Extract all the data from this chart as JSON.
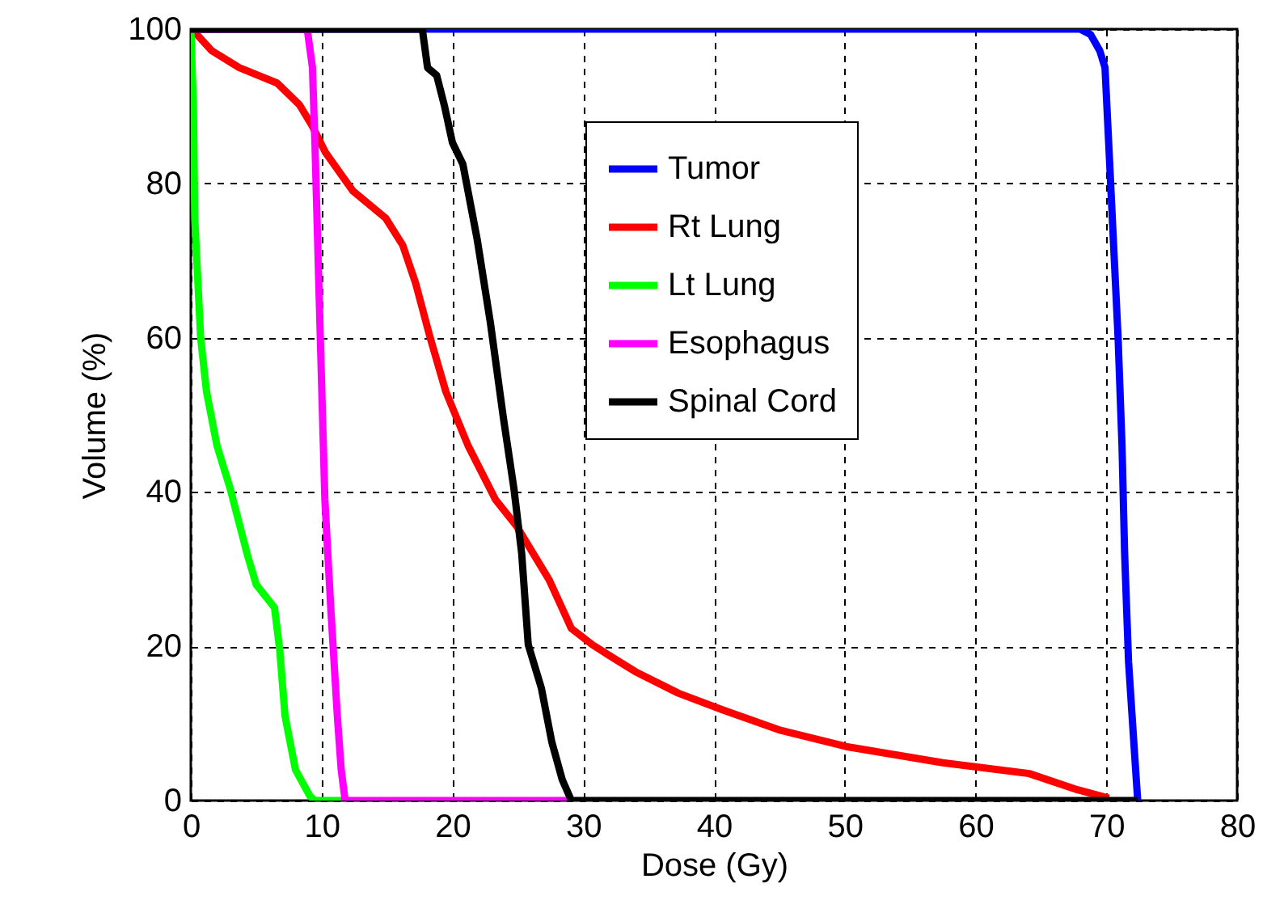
{
  "chart_data": {
    "type": "line",
    "xlabel": "Dose (Gy)",
    "ylabel": "Volume (%)",
    "xlim": [
      0,
      80
    ],
    "xticks": [
      0,
      10,
      20,
      30,
      40,
      50,
      60,
      70,
      80
    ],
    "ylim": [
      0,
      100
    ],
    "yticks": [
      0,
      20,
      40,
      60,
      80,
      100
    ],
    "grid": true,
    "legend": "top right",
    "series": [
      {
        "name": "Tumor",
        "color": "#0000ff",
        "x": [
          0,
          68.0,
          68.8,
          69.5,
          69.9,
          70.2,
          70.5,
          70.9,
          71.2,
          71.4,
          71.7,
          72.1,
          72.4
        ],
        "values": [
          100,
          100,
          99.3,
          97.2,
          95,
          84.6,
          74,
          60,
          46,
          32,
          18,
          7.6,
          0
        ]
      },
      {
        "name": "Rt Lung",
        "color": "#ff0000",
        "x": [
          0,
          0.3,
          1.6,
          3.7,
          6.6,
          8.3,
          9.3,
          10.3,
          12.4,
          14.9,
          16.2,
          17.2,
          18.3,
          19.5,
          21.2,
          23.3,
          24.9,
          27.4,
          29.1,
          30.7,
          32,
          34,
          37.3,
          40.6,
          45.1,
          50.1,
          57.5,
          64.1,
          67.8,
          70.2
        ],
        "values": [
          100,
          99.6,
          97.2,
          95,
          93,
          90.2,
          87.4,
          84,
          79,
          75.5,
          72,
          67,
          60,
          53,
          46,
          39,
          35.6,
          28.6,
          22.3,
          20.2,
          18.8,
          16.7,
          13.9,
          11.8,
          9.1,
          7,
          4.9,
          3.5,
          1.4,
          0.3
        ]
      },
      {
        "name": "Lt Lung",
        "color": "#00ff00",
        "x": [
          0,
          0.2,
          0.3,
          0.75,
          1.2,
          2.0,
          3.0,
          4.3,
          5.0,
          6.4,
          6.8,
          7.2,
          8.0,
          9.1,
          9.5,
          12
        ],
        "values": [
          100,
          90,
          75.5,
          60,
          53,
          46,
          40.5,
          32,
          28,
          25,
          19.5,
          11,
          4,
          0.6,
          0,
          0
        ]
      },
      {
        "name": "Esophagus",
        "color": "#ff00ff",
        "x": [
          0,
          8.9,
          9.3,
          9.5,
          9.9,
          10.25,
          10.7,
          11.2,
          11.5,
          11.8,
          29
        ],
        "values": [
          100,
          100,
          95,
          84.6,
          60,
          39,
          25,
          11,
          4,
          0,
          0
        ]
      },
      {
        "name": "Spinal Cord",
        "color": "#000000",
        "x": [
          0,
          17.7,
          18.1,
          18.8,
          19.4,
          20,
          20.8,
          21.9,
          22.9,
          23.9,
          24.7,
          25.3,
          25.8,
          26.8,
          27.6,
          28.4,
          29.1,
          72.4
        ],
        "values": [
          100,
          100,
          95,
          94,
          90,
          85.3,
          82.5,
          72.7,
          62,
          49.6,
          40.5,
          32,
          20.2,
          14.6,
          7.6,
          2.7,
          0,
          0
        ]
      }
    ]
  }
}
